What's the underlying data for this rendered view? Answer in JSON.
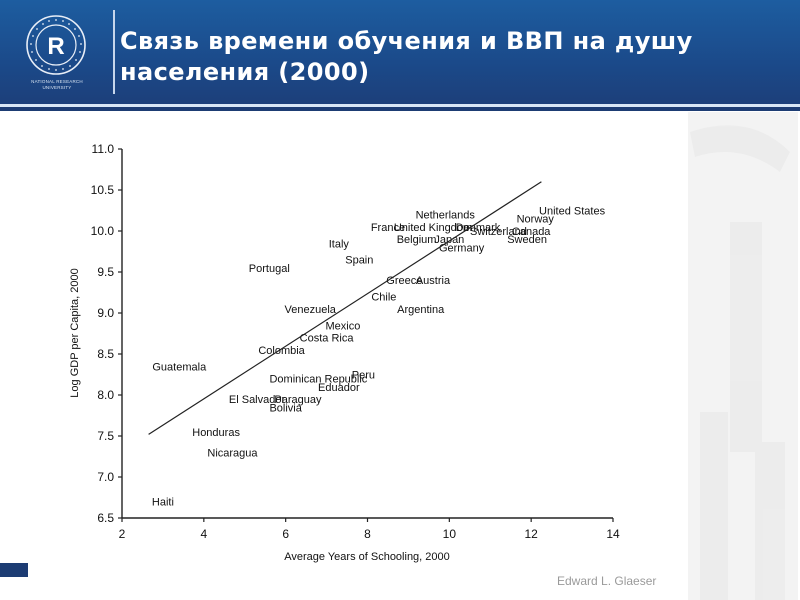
{
  "header": {
    "title": "Связь времени обучения и ВВП на душу населения (2000)",
    "title_line1": "Связь времени обучения и ВВП на душу",
    "title_line2": "населения (2000)",
    "logo_ring_text": "HIGHER SCHOOL OF ECONOMICS",
    "logo_caption_line1": "NATIONAL RESEARCH",
    "logo_caption_line2": "UNIVERSITY",
    "colors": {
      "header_bg": "#1b4a8a",
      "header_rule": "#1d3c73",
      "title": "#ffffff"
    }
  },
  "footer": {
    "credit": "Edward L. Glaeser"
  },
  "chart_data": {
    "type": "scatter",
    "title": "",
    "xlabel": "Average Years of Schooling, 2000",
    "ylabel": "Log GDP per Capita, 2000",
    "xlim": [
      2,
      14
    ],
    "ylim": [
      6.5,
      11.0
    ],
    "x_ticks": [
      "2",
      "4",
      "6",
      "8",
      "10",
      "12",
      "14"
    ],
    "y_ticks": [
      "6.5",
      "7.0",
      "7.5",
      "8.0",
      "8.5",
      "9.0",
      "9.5",
      "10.0",
      "10.5",
      "11.0"
    ],
    "grid": false,
    "legend": "none",
    "points": [
      {
        "label": "Haiti",
        "x": 3.0,
        "y": 6.7
      },
      {
        "label": "Nicaragua",
        "x": 4.7,
        "y": 7.3
      },
      {
        "label": "Honduras",
        "x": 4.3,
        "y": 7.55
      },
      {
        "label": "Guatemala",
        "x": 3.4,
        "y": 8.35
      },
      {
        "label": "El Salvador",
        "x": 5.3,
        "y": 7.95
      },
      {
        "label": "Bolivia",
        "x": 6.0,
        "y": 7.85
      },
      {
        "label": "Paraguay",
        "x": 6.3,
        "y": 7.95
      },
      {
        "label": "Eduador",
        "x": 7.3,
        "y": 8.1
      },
      {
        "label": "Dominican Republic",
        "x": 6.8,
        "y": 8.2
      },
      {
        "label": "Peru",
        "x": 7.9,
        "y": 8.25
      },
      {
        "label": "Colombia",
        "x": 5.9,
        "y": 8.55
      },
      {
        "label": "Costa Rica",
        "x": 7.0,
        "y": 8.7
      },
      {
        "label": "Mexico",
        "x": 7.4,
        "y": 8.85
      },
      {
        "label": "Venezuela",
        "x": 6.6,
        "y": 9.05
      },
      {
        "label": "Portugal",
        "x": 5.6,
        "y": 9.55
      },
      {
        "label": "Italy",
        "x": 7.3,
        "y": 9.85
      },
      {
        "label": "Spain",
        "x": 7.8,
        "y": 9.65
      },
      {
        "label": "Chile",
        "x": 8.4,
        "y": 9.2
      },
      {
        "label": "Argentina",
        "x": 9.3,
        "y": 9.05
      },
      {
        "label": "Greece",
        "x": 8.9,
        "y": 9.4
      },
      {
        "label": "Austria",
        "x": 9.6,
        "y": 9.4
      },
      {
        "label": "Belgium",
        "x": 9.2,
        "y": 9.9
      },
      {
        "label": "France",
        "x": 8.5,
        "y": 10.05
      },
      {
        "label": "United Kingdom",
        "x": 9.6,
        "y": 10.05
      },
      {
        "label": "Netherlands",
        "x": 9.9,
        "y": 10.2
      },
      {
        "label": "Japan",
        "x": 10.0,
        "y": 9.9
      },
      {
        "label": "Germany",
        "x": 10.3,
        "y": 9.8
      },
      {
        "label": "Denmark",
        "x": 10.7,
        "y": 10.05
      },
      {
        "label": "Switzerland",
        "x": 11.2,
        "y": 10.0
      },
      {
        "label": "Canada",
        "x": 12.0,
        "y": 10.0
      },
      {
        "label": "Sweden",
        "x": 11.9,
        "y": 9.9
      },
      {
        "label": "Norway",
        "x": 12.1,
        "y": 10.15
      },
      {
        "label": "United States",
        "x": 13.0,
        "y": 10.25
      }
    ],
    "trendline": {
      "x": [
        2.65,
        12.25
      ],
      "y": [
        7.52,
        10.6
      ]
    }
  }
}
